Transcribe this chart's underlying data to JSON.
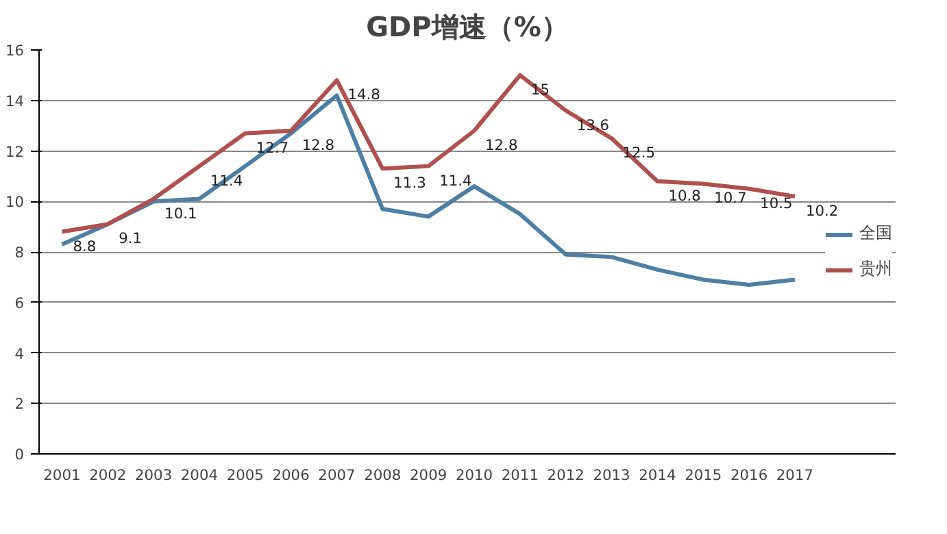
{
  "chart_data": {
    "type": "line",
    "title": "GDP增速（%）",
    "categories": [
      "2001",
      "2002",
      "2003",
      "2004",
      "2005",
      "2006",
      "2007",
      "2008",
      "2009",
      "2010",
      "2011",
      "2012",
      "2013",
      "2014",
      "2015",
      "2016",
      "2017"
    ],
    "series": [
      {
        "name": "全国",
        "color": "#4f7ea4",
        "values": [
          8.3,
          9.1,
          10.0,
          10.1,
          11.4,
          12.7,
          14.2,
          9.7,
          9.4,
          10.6,
          9.5,
          7.9,
          7.8,
          7.3,
          6.9,
          6.7,
          6.9
        ]
      },
      {
        "name": "贵州",
        "color": "#b0504e",
        "values": [
          8.8,
          9.1,
          10.1,
          11.4,
          12.7,
          12.8,
          14.8,
          11.3,
          11.4,
          12.8,
          15,
          13.6,
          12.5,
          10.8,
          10.7,
          10.5,
          10.2
        ],
        "value_labels": [
          "8.8",
          "9.1",
          "10.1",
          "11.4",
          "12.7",
          "12.8",
          "14.8",
          "11.3",
          "11.4",
          "12.8",
          "15",
          "13.6",
          "12.5",
          "10.8",
          "10.7",
          "10.5",
          "10.2"
        ]
      }
    ],
    "ylim": [
      0,
      16
    ],
    "yticks": [
      0,
      2,
      4,
      6,
      8,
      10,
      12,
      14,
      16
    ],
    "grid": "y",
    "legend": "right",
    "line_style": "solid"
  }
}
